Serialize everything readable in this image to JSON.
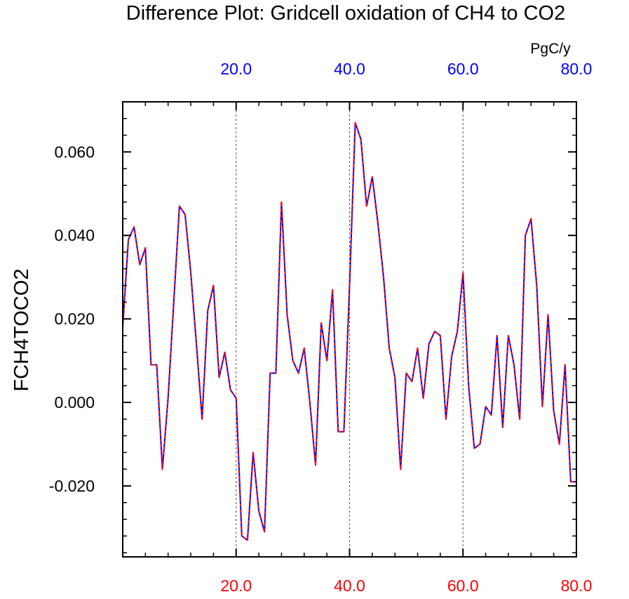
{
  "chart_data": {
    "type": "line",
    "title": "Difference Plot: Gridcell oxidation of CH4 to CO2",
    "units": "PgC/y",
    "ylabel": "FCH4TOCO2",
    "xlabel": "",
    "xlim": [
      0,
      80
    ],
    "ylim": [
      -0.037,
      0.072
    ],
    "x_ticks": [
      20,
      40,
      60,
      80
    ],
    "x_tick_labels_top": [
      "20.0",
      "40.0",
      "60.0",
      "80.0"
    ],
    "x_tick_labels_bottom": [
      "20.0",
      "40.0",
      "60.0",
      "80.0"
    ],
    "y_ticks": [
      -0.02,
      0.0,
      0.02,
      0.04,
      0.06
    ],
    "y_tick_labels": [
      "-0.020",
      "0.000",
      "0.020",
      "0.040",
      "0.060"
    ],
    "grid": "vertical dashed at x ticks",
    "colors": {
      "top_axis": "#0000ff",
      "bottom_axis": "#ff0000",
      "line_a": "#0000ff",
      "line_b": "#ff0000",
      "frame": "#000000",
      "grid": "#555555"
    },
    "series": [
      {
        "name": "series_a",
        "style": "solid",
        "color": "#0000ff",
        "x": [
          0,
          1,
          2,
          3,
          4,
          5,
          6,
          7,
          8,
          9,
          10,
          11,
          12,
          13,
          14,
          15,
          16,
          17,
          18,
          19,
          20,
          21,
          22,
          23,
          24,
          25,
          26,
          27,
          28,
          29,
          30,
          31,
          32,
          33,
          34,
          35,
          36,
          37,
          38,
          39,
          40,
          41,
          42,
          43,
          44,
          45,
          46,
          47,
          48,
          49,
          50,
          51,
          52,
          53,
          54,
          55,
          56,
          57,
          58,
          59,
          60,
          61,
          62,
          63,
          64,
          65,
          66,
          67,
          68,
          69,
          70,
          71,
          72,
          73,
          74,
          75,
          76,
          77,
          78,
          79,
          80
        ],
        "values": [
          0.018,
          0.039,
          0.042,
          0.033,
          0.037,
          0.009,
          0.009,
          -0.016,
          0.001,
          0.024,
          0.047,
          0.045,
          0.031,
          0.014,
          -0.004,
          0.022,
          0.028,
          0.006,
          0.012,
          0.003,
          0.001,
          -0.032,
          -0.033,
          -0.012,
          -0.026,
          -0.031,
          0.007,
          0.007,
          0.048,
          0.021,
          0.01,
          0.007,
          0.013,
          0.0,
          -0.015,
          0.019,
          0.01,
          0.027,
          -0.007,
          -0.007,
          0.028,
          0.067,
          0.063,
          0.047,
          0.054,
          0.043,
          0.03,
          0.013,
          0.006,
          -0.016,
          0.007,
          0.005,
          0.013,
          0.001,
          0.014,
          0.017,
          0.016,
          -0.004,
          0.011,
          0.017,
          0.031,
          0.004,
          -0.011,
          -0.01,
          -0.001,
          -0.003,
          0.016,
          -0.006,
          0.016,
          0.009,
          -0.004,
          0.04,
          0.044,
          0.028,
          -0.001,
          0.021,
          -0.002,
          -0.01,
          0.009,
          -0.019,
          -0.019
        ]
      },
      {
        "name": "series_b",
        "style": "dashed",
        "color": "#ff0000",
        "x": [
          0,
          1,
          2,
          3,
          4,
          5,
          6,
          7,
          8,
          9,
          10,
          11,
          12,
          13,
          14,
          15,
          16,
          17,
          18,
          19,
          20,
          21,
          22,
          23,
          24,
          25,
          26,
          27,
          28,
          29,
          30,
          31,
          32,
          33,
          34,
          35,
          36,
          37,
          38,
          39,
          40,
          41,
          42,
          43,
          44,
          45,
          46,
          47,
          48,
          49,
          50,
          51,
          52,
          53,
          54,
          55,
          56,
          57,
          58,
          59,
          60,
          61,
          62,
          63,
          64,
          65,
          66,
          67,
          68,
          69,
          70,
          71,
          72,
          73,
          74,
          75,
          76,
          77,
          78,
          79,
          80
        ],
        "values": [
          0.018,
          0.039,
          0.042,
          0.033,
          0.037,
          0.009,
          0.009,
          -0.016,
          0.001,
          0.024,
          0.047,
          0.045,
          0.031,
          0.014,
          -0.004,
          0.022,
          0.028,
          0.006,
          0.012,
          0.003,
          0.001,
          -0.032,
          -0.033,
          -0.012,
          -0.026,
          -0.031,
          0.007,
          0.007,
          0.048,
          0.021,
          0.01,
          0.007,
          0.013,
          0.0,
          -0.015,
          0.019,
          0.01,
          0.027,
          -0.007,
          -0.007,
          0.028,
          0.067,
          0.063,
          0.047,
          0.054,
          0.043,
          0.03,
          0.013,
          0.006,
          -0.016,
          0.007,
          0.005,
          0.013,
          0.001,
          0.014,
          0.017,
          0.016,
          -0.004,
          0.011,
          0.017,
          0.031,
          0.004,
          -0.011,
          -0.01,
          -0.001,
          -0.003,
          0.016,
          -0.006,
          0.016,
          0.009,
          -0.004,
          0.04,
          0.044,
          0.028,
          -0.001,
          0.021,
          -0.002,
          -0.01,
          0.009,
          -0.019,
          -0.019
        ]
      }
    ]
  }
}
